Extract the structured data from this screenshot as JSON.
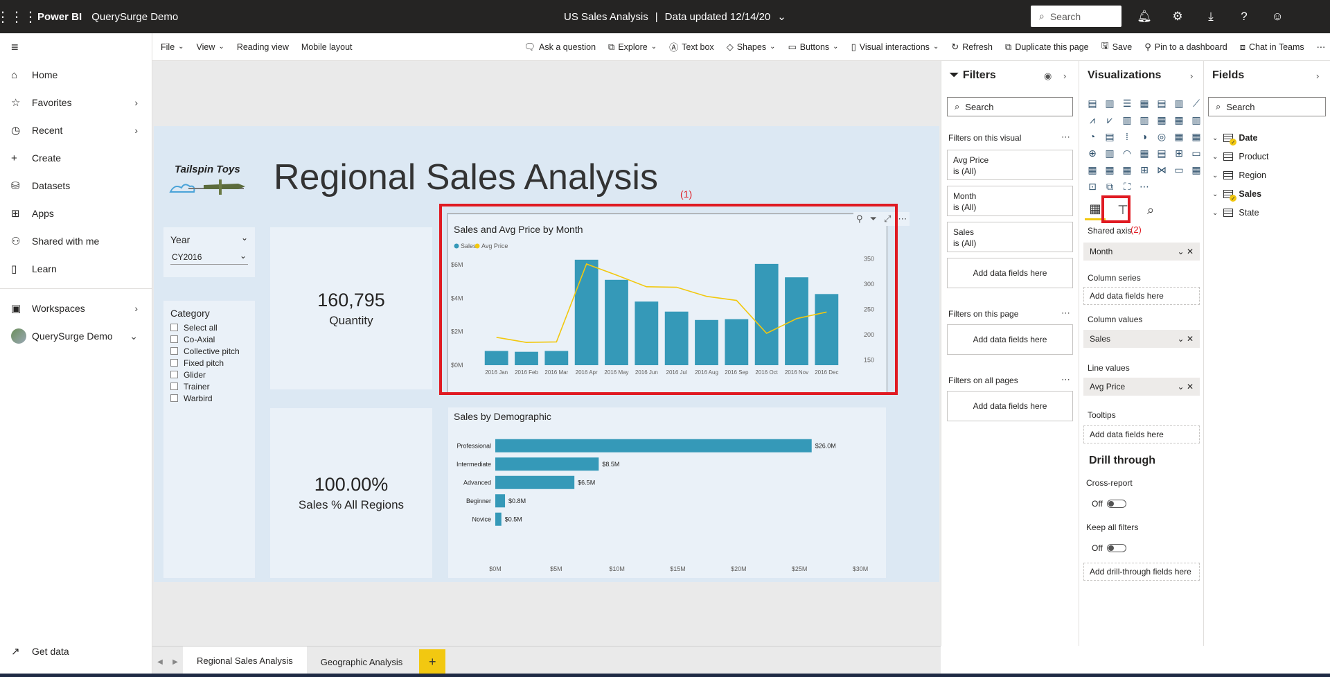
{
  "topbar": {
    "brand": "Power BI",
    "workspace": "QuerySurge Demo",
    "report_title": "US Sales Analysis",
    "updated": "Data updated 12/14/20",
    "search_placeholder": "Search"
  },
  "leftnav": {
    "items": [
      {
        "label": "Home",
        "icon": "home-icon"
      },
      {
        "label": "Favorites",
        "icon": "star-icon"
      },
      {
        "label": "Recent",
        "icon": "clock-icon"
      },
      {
        "label": "Create",
        "icon": "plus-icon"
      },
      {
        "label": "Datasets",
        "icon": "database-icon"
      },
      {
        "label": "Apps",
        "icon": "apps-icon"
      },
      {
        "label": "Shared with me",
        "icon": "shared-icon"
      },
      {
        "label": "Learn",
        "icon": "book-icon"
      },
      {
        "label": "Workspaces",
        "icon": "workspaces-icon"
      },
      {
        "label": "QuerySurge Demo",
        "icon": "workspace-avatar"
      }
    ],
    "get_data": "Get data"
  },
  "ribbon": {
    "file": "File",
    "view": "View",
    "reading_view": "Reading view",
    "mobile_layout": "Mobile layout",
    "ask": "Ask a question",
    "explore": "Explore",
    "text_box": "Text box",
    "shapes": "Shapes",
    "buttons": "Buttons",
    "visual_interactions": "Visual interactions",
    "refresh": "Refresh",
    "duplicate": "Duplicate this page",
    "save": "Save",
    "pin": "Pin to a dashboard",
    "chat": "Chat in Teams"
  },
  "report": {
    "logo_text": "Tailspin Toys",
    "title": "Regional Sales Analysis",
    "year_slicer": {
      "title": "Year",
      "value": "CY2016"
    },
    "category_slicer": {
      "title": "Category",
      "items": [
        "Select all",
        "Co-Axial",
        "Collective pitch",
        "Fixed pitch",
        "Glider",
        "Trainer",
        "Warbird"
      ]
    },
    "kpi_quantity": {
      "value": "160,795",
      "label": "Quantity"
    },
    "kpi_pct": {
      "value": "100.00%",
      "label": "Sales % All Regions"
    },
    "annotation_1": "(1)",
    "annotation_2": "(2)"
  },
  "chart_data": [
    {
      "type": "bar+line",
      "title": "Sales and Avg Price by Month",
      "legend": [
        "Sales",
        "Avg Price"
      ],
      "legend_position": "top-left",
      "categories": [
        "2016 Jan",
        "2016 Feb",
        "2016 Mar",
        "2016 Apr",
        "2016 May",
        "2016 Jun",
        "2016 Jul",
        "2016 Aug",
        "2016 Sep",
        "2016 Oct",
        "2016 Nov",
        "2016 Dec"
      ],
      "series": [
        {
          "name": "Sales",
          "axis": "left",
          "values": [
            0.85,
            0.8,
            0.85,
            6.3,
            5.1,
            3.8,
            3.2,
            2.7,
            2.75,
            6.05,
            5.25,
            4.25
          ]
        },
        {
          "name": "Avg Price",
          "axis": "right",
          "values": [
            195,
            185,
            186,
            340,
            318,
            295,
            294,
            276,
            268,
            203,
            232,
            245
          ]
        }
      ],
      "y_left_ticks": [
        "$0M",
        "$2M",
        "$4M",
        "$6M"
      ],
      "y_left_range": [
        0,
        6.5
      ],
      "y_right_ticks": [
        "150",
        "200",
        "250",
        "300",
        "350"
      ],
      "y_right_range": [
        140,
        355
      ],
      "colors": {
        "Sales": "#3599b8",
        "Avg Price": "#f2c80f"
      }
    },
    {
      "type": "bar-horizontal",
      "title": "Sales by Demographic",
      "categories": [
        "Professional",
        "Intermediate",
        "Advanced",
        "Beginner",
        "Novice"
      ],
      "values": [
        26.0,
        8.5,
        6.5,
        0.8,
        0.5
      ],
      "data_labels": [
        "$26.0M",
        "$8.5M",
        "$6.5M",
        "$0.8M",
        "$0.5M"
      ],
      "x_ticks": [
        "$0M",
        "$5M",
        "$10M",
        "$15M",
        "$20M",
        "$25M",
        "$30M"
      ],
      "x_range": [
        0,
        30
      ],
      "color": "#3599b8"
    }
  ],
  "filters": {
    "title": "Filters",
    "search_placeholder": "Search",
    "on_visual": "Filters on this visual",
    "visual_filters": [
      {
        "field": "Avg Price",
        "state": "is (All)"
      },
      {
        "field": "Month",
        "state": "is (All)"
      },
      {
        "field": "Sales",
        "state": "is (All)"
      }
    ],
    "add_fields": "Add data fields here",
    "on_page": "Filters on this page",
    "on_all": "Filters on all pages"
  },
  "visualizations": {
    "title": "Visualizations",
    "shared_axis": "Shared axis",
    "shared_axis_value": "Month",
    "column_series": "Column series",
    "column_values": "Column values",
    "column_values_value": "Sales",
    "line_values": "Line values",
    "line_values_value": "Avg Price",
    "tooltips": "Tooltips",
    "add_fields": "Add data fields here",
    "drill_through": "Drill through",
    "cross_report": "Cross-report",
    "keep_all": "Keep all filters",
    "off": "Off",
    "add_drill": "Add drill-through fields here"
  },
  "fields": {
    "title": "Fields",
    "search_placeholder": "Search",
    "tables": [
      "Date",
      "Product",
      "Region",
      "Sales",
      "State"
    ]
  },
  "pagetabs": {
    "tabs": [
      "Regional Sales Analysis",
      "Geographic Analysis"
    ],
    "add": "+"
  }
}
